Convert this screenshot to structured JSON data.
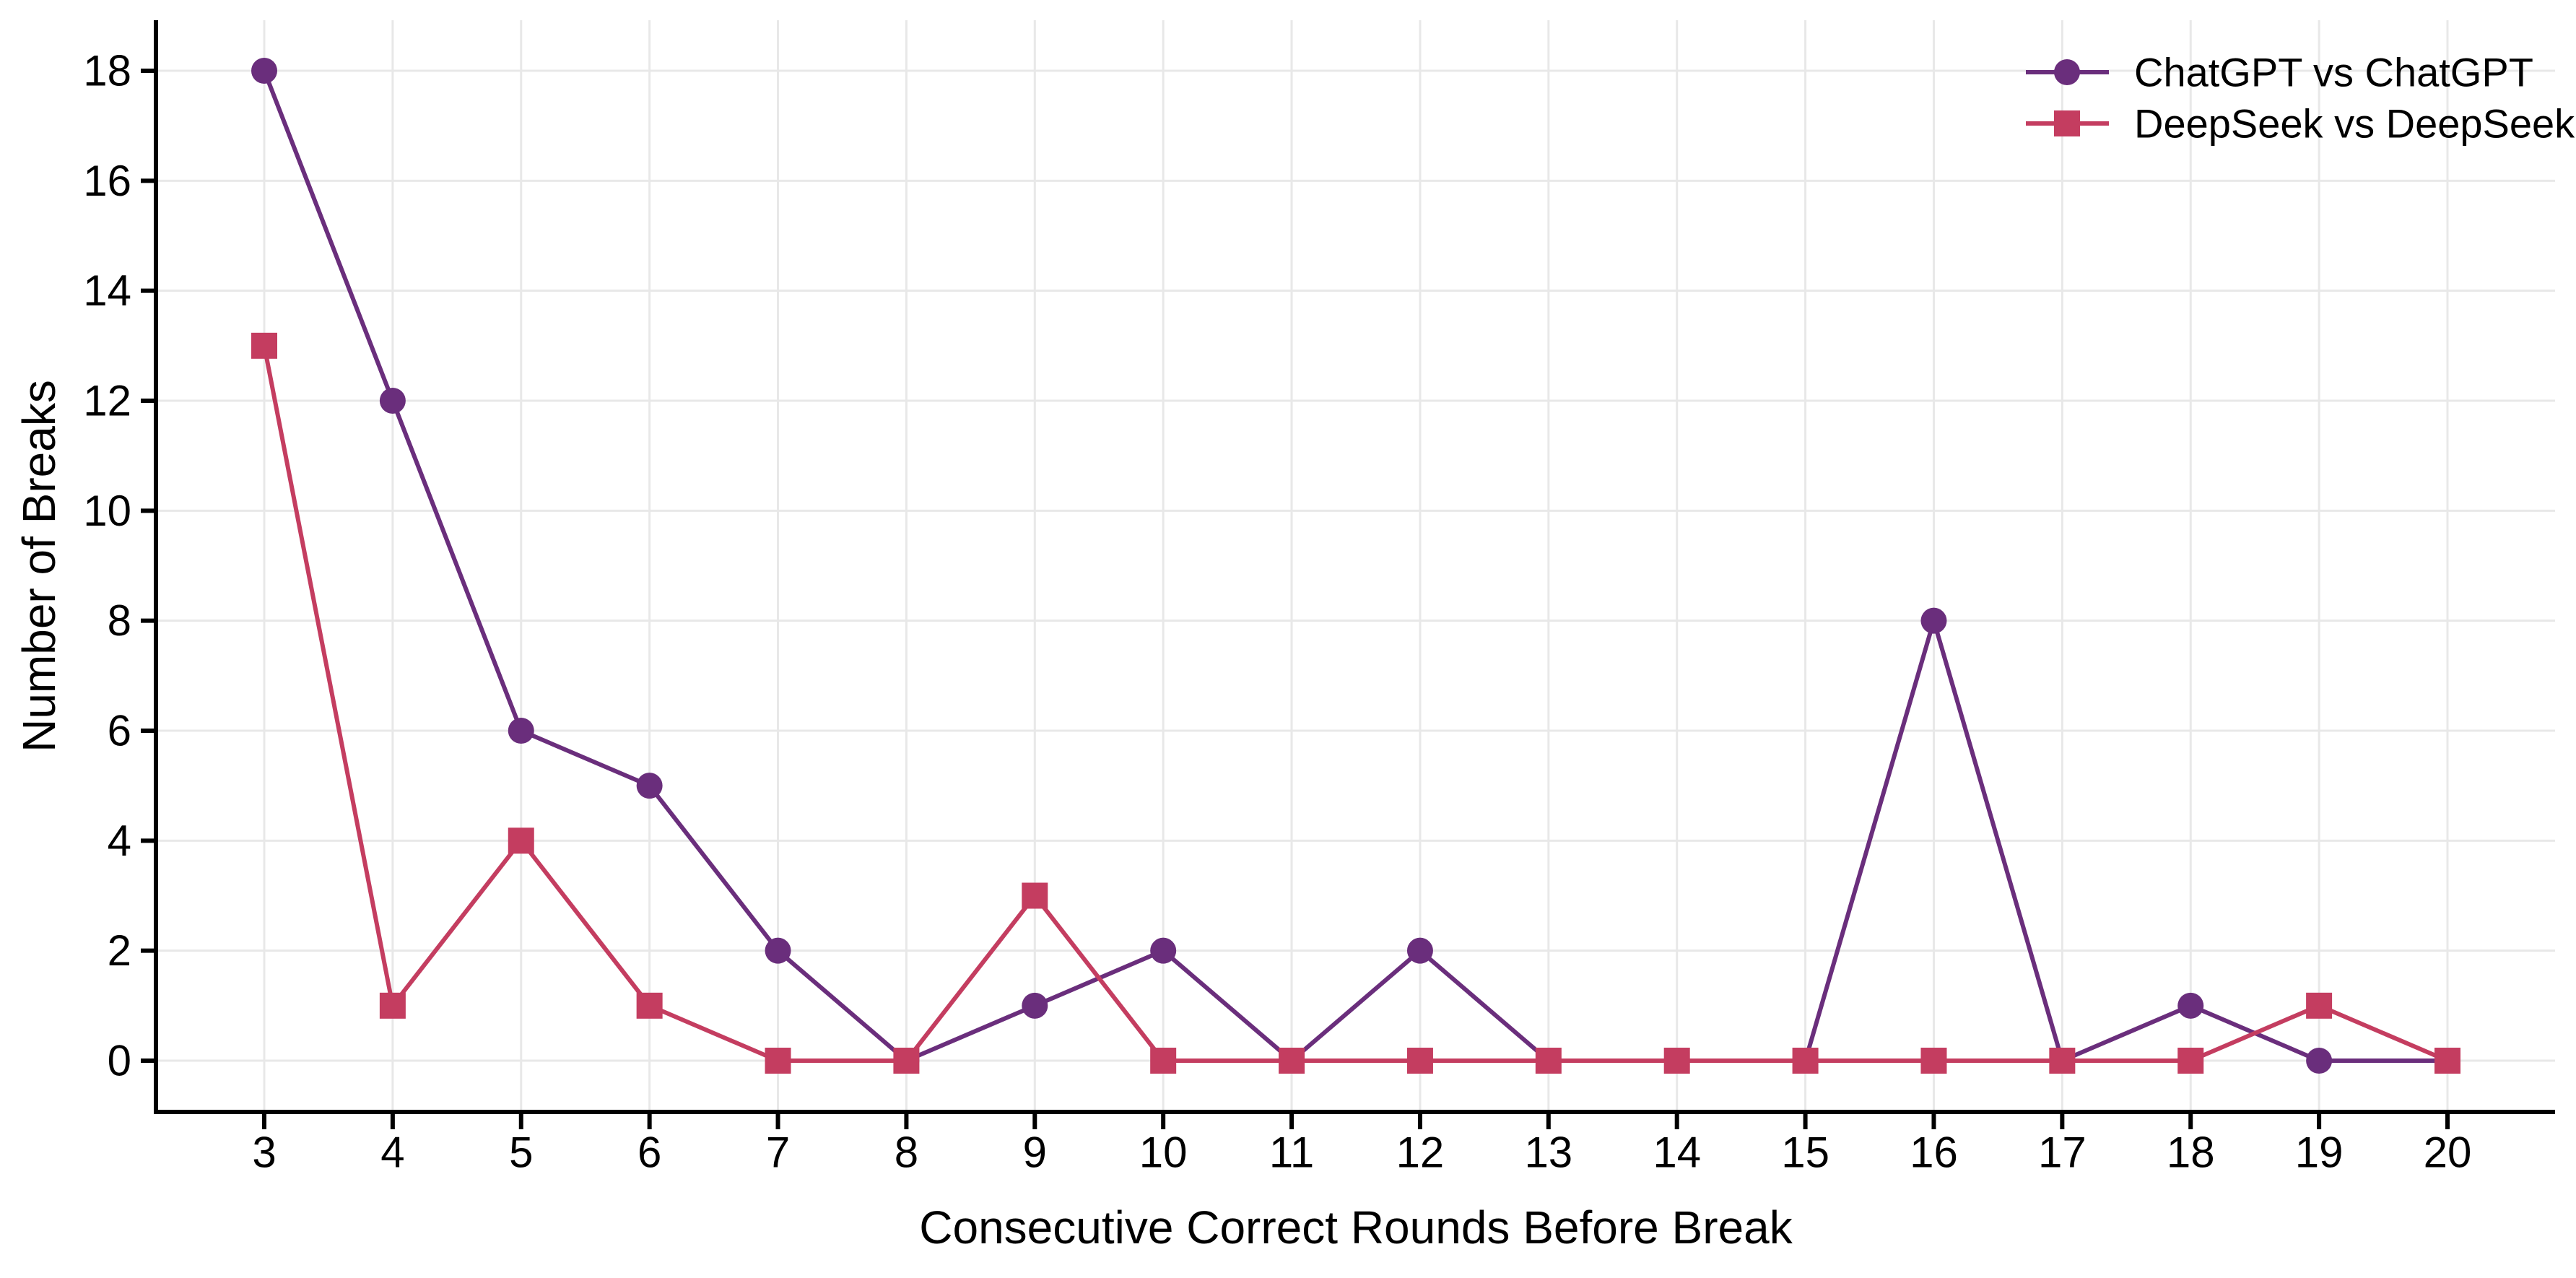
{
  "chart_data": {
    "type": "line",
    "title": "",
    "xlabel": "Consecutive Correct Rounds Before Break",
    "ylabel": "Number of Breaks",
    "x": [
      3,
      4,
      5,
      6,
      7,
      8,
      9,
      10,
      11,
      12,
      13,
      14,
      15,
      16,
      17,
      18,
      19,
      20
    ],
    "series": [
      {
        "name": "ChatGPT vs ChatGPT",
        "marker": "circle",
        "color": "#6A2E7C",
        "values": [
          18,
          12,
          6,
          5,
          2,
          0,
          1,
          2,
          0,
          2,
          0,
          0,
          0,
          8,
          0,
          1,
          0,
          0
        ]
      },
      {
        "name": "DeepSeek vs DeepSeek",
        "marker": "square",
        "color": "#C43D60",
        "values": [
          13,
          1,
          4,
          1,
          0,
          0,
          3,
          0,
          0,
          0,
          0,
          0,
          0,
          0,
          0,
          0,
          1,
          0
        ]
      }
    ],
    "ylim": [
      0,
      18
    ],
    "yticks": [
      0,
      2,
      4,
      6,
      8,
      10,
      12,
      14,
      16,
      18
    ],
    "grid": true,
    "legend_position": "top-right",
    "colors": {
      "grid": "#E8E8E8",
      "axis": "#000000",
      "text": "#000000",
      "background": "#FFFFFF"
    }
  }
}
